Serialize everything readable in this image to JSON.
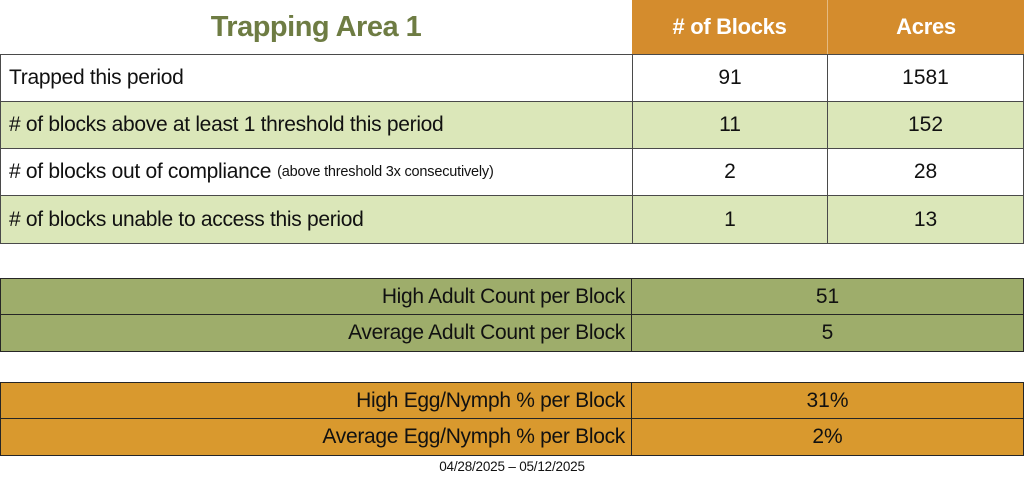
{
  "colors": {
    "header_orange": "#D48C2D",
    "footer_orange": "#D9992E",
    "row_light_green": "#DBE7B9",
    "mini_olive_green": "#9EAD6B",
    "title_green": "#6E7C43",
    "header_text_white": "#FFFFFF",
    "body_text": "#111111",
    "main_border_gray": "#4A4A4A",
    "mini_border_dark": "#262626"
  },
  "chart_data": [
    {
      "type": "table",
      "name": "trapping-summary",
      "title": "Trapping Area 1",
      "columns": [
        "# of Blocks",
        "Acres"
      ],
      "rows": [
        {
          "label": "Trapped this period",
          "note": "",
          "blocks": "91",
          "acres": "1581"
        },
        {
          "label": "# of blocks above at least 1 threshold this period",
          "note": "",
          "blocks": "11",
          "acres": "152"
        },
        {
          "label": "# of blocks out of compliance",
          "note": "(above threshold 3x consecutively)",
          "blocks": "2",
          "acres": "28"
        },
        {
          "label": "# of blocks unable to access this period",
          "note": "",
          "blocks": "1",
          "acres": "13"
        }
      ]
    },
    {
      "type": "table",
      "name": "adult-counts",
      "rows": [
        {
          "label": "High Adult Count per Block",
          "value": "51"
        },
        {
          "label": "Average Adult Count per Block",
          "value": "5"
        }
      ]
    },
    {
      "type": "table",
      "name": "egg-nymph-percentages",
      "rows": [
        {
          "label": "High Egg/Nymph % per Block",
          "value": "31%"
        },
        {
          "label": "Average Egg/Nymph % per Block",
          "value": "2%"
        }
      ]
    }
  ],
  "footer": {
    "date_range": "04/28/2025 – 05/12/2025"
  }
}
